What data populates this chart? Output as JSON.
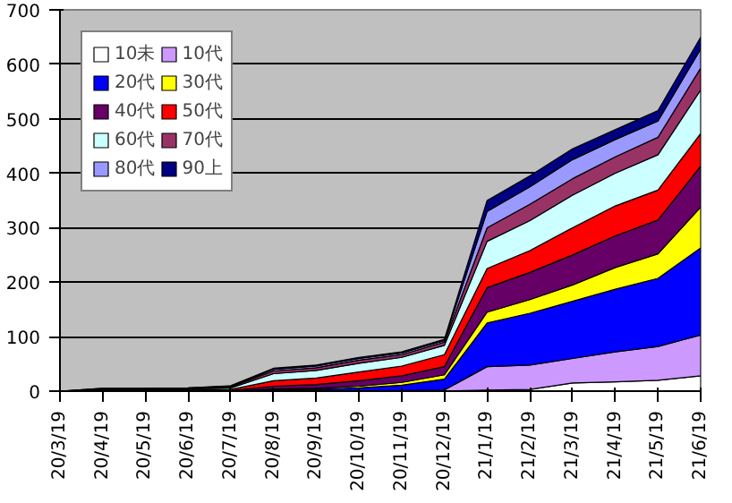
{
  "chart_data": {
    "type": "area",
    "stacked": true,
    "categories": [
      "20/3/19",
      "20/4/19",
      "20/5/19",
      "20/6/19",
      "20/7/19",
      "20/8/19",
      "20/9/19",
      "20/10/19",
      "20/11/19",
      "20/12/19",
      "21/1/19",
      "21/2/19",
      "21/3/19",
      "21/4/19",
      "21/5/19",
      "21/6/19"
    ],
    "series": [
      {
        "name": "10未",
        "color": "#ffffff",
        "values": [
          0,
          0,
          0,
          0,
          0,
          0,
          0,
          0,
          0,
          0,
          2,
          3,
          15,
          17,
          20,
          28
        ]
      },
      {
        "name": "10代",
        "color": "#cc99ff",
        "values": [
          0,
          0,
          0,
          0,
          0,
          0,
          0,
          0,
          1,
          2,
          43,
          45,
          45,
          55,
          62,
          75
        ]
      },
      {
        "name": "20代",
        "color": "#0000ff",
        "values": [
          0,
          0,
          0,
          0,
          0,
          2,
          3,
          6,
          10,
          20,
          80,
          95,
          105,
          115,
          125,
          160
        ]
      },
      {
        "name": "30代",
        "color": "#ffff00",
        "values": [
          0,
          0,
          0,
          0,
          0,
          2,
          2,
          3,
          5,
          8,
          20,
          25,
          30,
          40,
          45,
          75
        ]
      },
      {
        "name": "40代",
        "color": "#660066",
        "values": [
          0,
          0,
          0,
          1,
          1,
          5,
          7,
          10,
          12,
          15,
          45,
          50,
          55,
          58,
          62,
          75
        ]
      },
      {
        "name": "50代",
        "color": "#ff0000",
        "values": [
          0,
          1,
          1,
          1,
          2,
          10,
          12,
          16,
          18,
          22,
          35,
          40,
          50,
          55,
          55,
          60
        ]
      },
      {
        "name": "60代",
        "color": "#ccffff",
        "values": [
          0,
          2,
          2,
          2,
          3,
          13,
          14,
          16,
          16,
          17,
          50,
          55,
          60,
          60,
          65,
          80
        ]
      },
      {
        "name": "70代",
        "color": "#993366",
        "values": [
          0,
          1,
          1,
          1,
          2,
          5,
          5,
          6,
          5,
          6,
          25,
          30,
          30,
          30,
          32,
          40
        ]
      },
      {
        "name": "80代",
        "color": "#9999ff",
        "values": [
          0,
          1,
          1,
          1,
          1,
          3,
          3,
          3,
          3,
          3,
          30,
          32,
          35,
          32,
          30,
          35
        ]
      },
      {
        "name": "90上",
        "color": "#000080",
        "values": [
          0,
          0,
          0,
          0,
          1,
          2,
          2,
          2,
          2,
          2,
          20,
          20,
          20,
          18,
          19,
          22
        ]
      }
    ],
    "ylim": [
      0,
      700
    ],
    "yticks": [
      0,
      100,
      200,
      300,
      400,
      500,
      600,
      700
    ],
    "grid": "y",
    "legend": "top left"
  }
}
